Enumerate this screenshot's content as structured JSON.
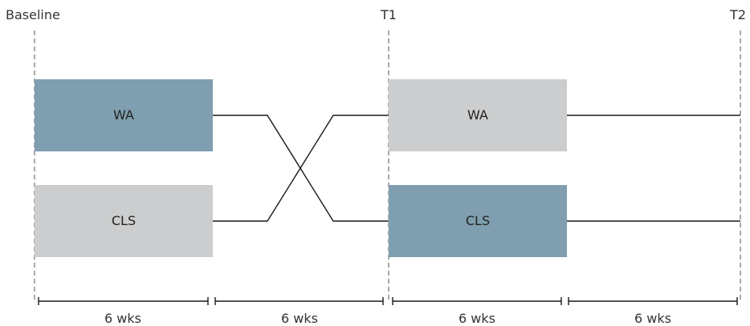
{
  "timepoints": [
    "Baseline",
    "T1",
    "T2"
  ],
  "phase1": {
    "box_a": {
      "label": "WA",
      "color": "#7f9fb0"
    },
    "box_b": {
      "label": "CLS",
      "color": "#cccdce"
    }
  },
  "phase2": {
    "box_a": {
      "label": "WA",
      "color": "#cccdce"
    },
    "box_b": {
      "label": "CLS",
      "color": "#7f9fb0"
    }
  },
  "durations": [
    "6 wks",
    "6 wks",
    "6 wks",
    "6 wks"
  ]
}
